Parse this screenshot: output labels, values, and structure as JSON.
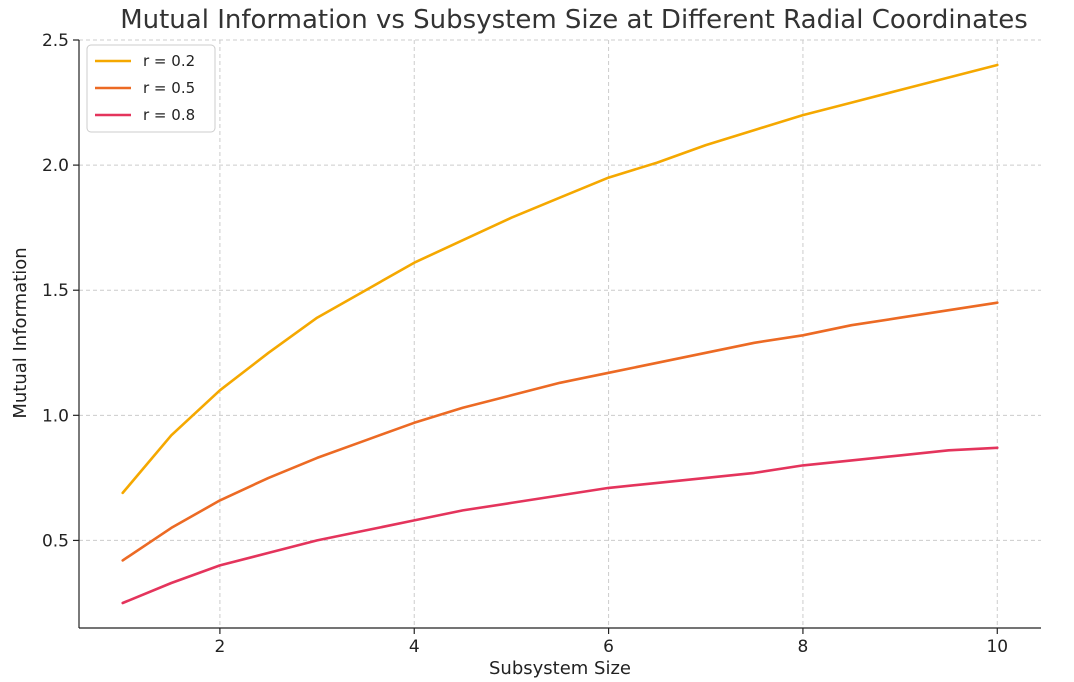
{
  "chart_data": {
    "type": "line",
    "title": "Mutual Information vs Subsystem Size at Different Radial Coordinates",
    "xlabel": "Subsystem Size",
    "ylabel": "Mutual Information",
    "xlim": [
      0.55,
      10.45
    ],
    "ylim": [
      0.15,
      2.5
    ],
    "xticks": [
      2,
      4,
      6,
      8,
      10
    ],
    "yticks": [
      0.5,
      1.0,
      1.5,
      2.0,
      2.5
    ],
    "xtick_labels": [
      "2",
      "4",
      "6",
      "8",
      "10"
    ],
    "ytick_labels": [
      "0.5",
      "1.0",
      "1.5",
      "2.0",
      "2.5"
    ],
    "grid": true,
    "legend_position": "top-left",
    "x": [
      1,
      1.5,
      2,
      2.5,
      3,
      3.5,
      4,
      4.5,
      5,
      5.5,
      6,
      6.5,
      7,
      7.5,
      8,
      8.5,
      9,
      9.5,
      10
    ],
    "series": [
      {
        "name": "r = 0.2",
        "color": "#f5a800",
        "values": [
          0.69,
          0.92,
          1.1,
          1.25,
          1.39,
          1.5,
          1.61,
          1.7,
          1.79,
          1.87,
          1.95,
          2.01,
          2.08,
          2.14,
          2.2,
          2.25,
          2.3,
          2.35,
          2.4
        ]
      },
      {
        "name": "r = 0.5",
        "color": "#ec6a24",
        "values": [
          0.42,
          0.55,
          0.66,
          0.75,
          0.83,
          0.9,
          0.97,
          1.03,
          1.08,
          1.13,
          1.17,
          1.21,
          1.25,
          1.29,
          1.32,
          1.36,
          1.39,
          1.42,
          1.45
        ]
      },
      {
        "name": "r = 0.8",
        "color": "#e4345c",
        "values": [
          0.25,
          0.33,
          0.4,
          0.45,
          0.5,
          0.54,
          0.58,
          0.62,
          0.65,
          0.68,
          0.71,
          0.73,
          0.75,
          0.77,
          0.8,
          0.82,
          0.84,
          0.86,
          0.87
        ]
      }
    ]
  }
}
